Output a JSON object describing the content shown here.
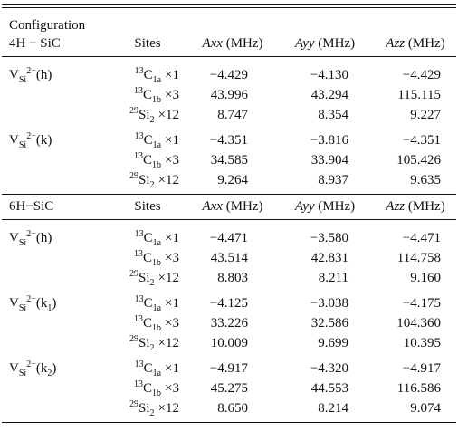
{
  "header": {
    "configuration": "Configuration"
  },
  "sections": [
    {
      "label": "4H − SiC",
      "columns": [
        {
          "name": "Sites"
        },
        {
          "name": "Axx",
          "unit": "(MHz)"
        },
        {
          "name": "Ayy",
          "unit": "(MHz)"
        },
        {
          "name": "Azz",
          "unit": "(MHz)"
        }
      ],
      "groups": [
        {
          "config": {
            "base": "V",
            "sub": "Si",
            "sup": "2−",
            "suffix": "(h)"
          },
          "rows": [
            {
              "site": {
                "iso": "13",
                "el": "C",
                "sub": "1a",
                "mult": "×1"
              },
              "values": [
                "−4.429",
                "−4.130",
                "−4.429"
              ]
            },
            {
              "site": {
                "iso": "13",
                "el": "C",
                "sub": "1b",
                "mult": "×3"
              },
              "values": [
                "43.996",
                "43.294",
                "115.115"
              ]
            },
            {
              "site": {
                "iso": "29",
                "el": "Si",
                "sub": "2",
                "mult": "×12"
              },
              "values": [
                "8.747",
                "8.354",
                "9.227"
              ]
            }
          ]
        },
        {
          "config": {
            "base": "V",
            "sub": "Si",
            "sup": "2−",
            "suffix": "(k)"
          },
          "rows": [
            {
              "site": {
                "iso": "13",
                "el": "C",
                "sub": "1a",
                "mult": "×1"
              },
              "values": [
                "−4.351",
                "−3.816",
                "−4.351"
              ]
            },
            {
              "site": {
                "iso": "13",
                "el": "C",
                "sub": "1b",
                "mult": "×3"
              },
              "values": [
                "34.585",
                "33.904",
                "105.426"
              ]
            },
            {
              "site": {
                "iso": "29",
                "el": "Si",
                "sub": "2",
                "mult": "×12"
              },
              "values": [
                "9.264",
                "8.937",
                "9.635"
              ]
            }
          ]
        }
      ]
    },
    {
      "label": "6H−SiC",
      "columns": [
        {
          "name": "Sites"
        },
        {
          "name": "Axx",
          "unit": "(MHz)"
        },
        {
          "name": "Ayy",
          "unit": "(MHz)"
        },
        {
          "name": "Azz",
          "unit": "(MHz)"
        }
      ],
      "groups": [
        {
          "config": {
            "base": "V",
            "sub": "Si",
            "sup": "2−",
            "suffix": "(h)"
          },
          "rows": [
            {
              "site": {
                "iso": "13",
                "el": "C",
                "sub": "1a",
                "mult": "×1"
              },
              "values": [
                "−4.471",
                "−3.580",
                "−4.471"
              ]
            },
            {
              "site": {
                "iso": "13",
                "el": "C",
                "sub": "1b",
                "mult": "×3"
              },
              "values": [
                "43.514",
                "42.831",
                "114.758"
              ]
            },
            {
              "site": {
                "iso": "29",
                "el": "Si",
                "sub": "2",
                "mult": "×12"
              },
              "values": [
                "8.803",
                "8.211",
                "9.160"
              ]
            }
          ]
        },
        {
          "config": {
            "base": "V",
            "sub": "Si",
            "sup": "2−",
            "suffix": "(k",
            "suffix_sub": "1",
            "suffix_end": ")"
          },
          "rows": [
            {
              "site": {
                "iso": "13",
                "el": "C",
                "sub": "1a",
                "mult": "×1"
              },
              "values": [
                "−4.125",
                "−3.038",
                "−4.175"
              ]
            },
            {
              "site": {
                "iso": "13",
                "el": "C",
                "sub": "1b",
                "mult": "×3"
              },
              "values": [
                "33.226",
                "32.586",
                "104.360"
              ]
            },
            {
              "site": {
                "iso": "29",
                "el": "Si",
                "sub": "2",
                "mult": "×12"
              },
              "values": [
                "10.009",
                "9.699",
                "10.395"
              ]
            }
          ]
        },
        {
          "config": {
            "base": "V",
            "sub": "Si",
            "sup": "2−",
            "suffix": "(k",
            "suffix_sub": "2",
            "suffix_end": ")"
          },
          "rows": [
            {
              "site": {
                "iso": "13",
                "el": "C",
                "sub": "1a",
                "mult": "×1"
              },
              "values": [
                "−4.917",
                "−4.320",
                "−4.917"
              ]
            },
            {
              "site": {
                "iso": "13",
                "el": "C",
                "sub": "1b",
                "mult": "×3"
              },
              "values": [
                "45.275",
                "44.553",
                "116.586"
              ]
            },
            {
              "site": {
                "iso": "29",
                "el": "Si",
                "sub": "2",
                "mult": "×12"
              },
              "values": [
                "8.650",
                "8.214",
                "9.074"
              ]
            }
          ]
        }
      ]
    }
  ]
}
